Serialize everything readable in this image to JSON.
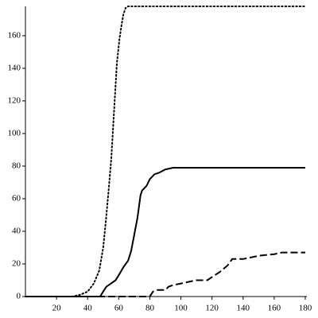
{
  "chart_data": {
    "type": "line",
    "xlim": [
      0,
      180
    ],
    "ylim": [
      0,
      178
    ],
    "xticks": [
      20,
      40,
      60,
      80,
      100,
      120,
      140,
      160,
      180
    ],
    "yticks": [
      0,
      20,
      40,
      60,
      80,
      100,
      120,
      140,
      160
    ],
    "series": [
      {
        "color": "#000000",
        "style": "dotted",
        "x": [
          0,
          30,
          35,
          40,
          44,
          47.5,
          50,
          51.6,
          53.5,
          55.2,
          56.7,
          58.8,
          60.5,
          61.9,
          63,
          64.4,
          66,
          180
        ],
        "values": [
          0,
          0,
          1,
          3,
          8,
          16,
          30,
          45,
          65,
          84,
          109,
          143,
          158,
          167,
          173,
          177,
          178,
          178
        ]
      },
      {
        "color": "#000000",
        "style": "solid",
        "x": [
          0,
          48,
          50,
          52,
          55,
          58,
          60,
          63,
          66,
          68,
          70,
          72,
          73,
          74,
          75,
          78,
          80,
          83,
          86,
          90,
          95,
          180
        ],
        "values": [
          0,
          0,
          3,
          6,
          8,
          10,
          13,
          18,
          22,
          28,
          38,
          48,
          55,
          62,
          65,
          68,
          72,
          75,
          76,
          78,
          79,
          79
        ]
      },
      {
        "color": "#000000",
        "style": "dashed",
        "x": [
          0,
          80,
          82,
          85,
          90,
          92,
          95,
          100,
          105,
          110,
          117,
          120,
          125,
          130,
          133,
          140,
          145,
          150,
          160,
          165,
          180
        ],
        "values": [
          0,
          0,
          3,
          4,
          4,
          6,
          7,
          8,
          9,
          10,
          10,
          12,
          15,
          19,
          23,
          23,
          24,
          25,
          26,
          27,
          27
        ]
      }
    ]
  }
}
